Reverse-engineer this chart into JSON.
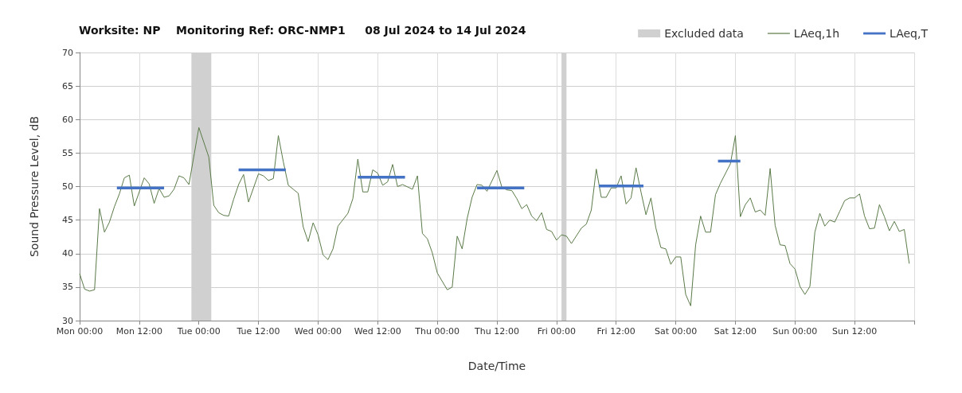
{
  "chart_data": {
    "type": "line",
    "title": "Worksite: NP    Monitoring Ref: ORC-NMP1     08 Jul 2024 to 14 Jul 2024",
    "xlabel": "Date/Time",
    "ylabel": "Sound Pressure Level, dB",
    "xlim": [
      "2024-07-08T00:00",
      "2024-07-15T00:00"
    ],
    "xticks": [
      {
        "value": "2024-07-08T00:00",
        "label": "Mon 00:00"
      },
      {
        "value": "2024-07-08T12:00",
        "label": "Mon 12:00"
      },
      {
        "value": "2024-07-09T00:00",
        "label": "Tue 00:00"
      },
      {
        "value": "2024-07-09T12:00",
        "label": "Tue 12:00"
      },
      {
        "value": "2024-07-10T00:00",
        "label": "Wed 00:00"
      },
      {
        "value": "2024-07-10T12:00",
        "label": "Wed 12:00"
      },
      {
        "value": "2024-07-11T00:00",
        "label": "Thu 00:00"
      },
      {
        "value": "2024-07-11T12:00",
        "label": "Thu 12:00"
      },
      {
        "value": "2024-07-12T00:00",
        "label": "Fri 00:00"
      },
      {
        "value": "2024-07-12T12:00",
        "label": "Fri 12:00"
      },
      {
        "value": "2024-07-13T00:00",
        "label": "Sat 00:00"
      },
      {
        "value": "2024-07-13T12:00",
        "label": "Sat 12:00"
      },
      {
        "value": "2024-07-14T00:00",
        "label": "Sun 00:00"
      },
      {
        "value": "2024-07-14T12:00",
        "label": "Sun 12:00"
      },
      {
        "value": "2024-07-15T00:00",
        "label": null
      }
    ],
    "ylim": [
      30,
      70
    ],
    "yticks": [
      30,
      35,
      40,
      45,
      50,
      55,
      60,
      65,
      70
    ],
    "grid": true,
    "legend": "top right",
    "bands": [
      {
        "axis": "x",
        "from": "2024-07-08T22:30",
        "to": "2024-07-09T02:30",
        "label": "Excluded data",
        "color": "#d0d0d0"
      },
      {
        "axis": "x",
        "from": "2024-07-12T01:00",
        "to": "2024-07-12T02:00",
        "color": "#d0d0d0"
      }
    ],
    "series": [
      {
        "name": "LAeq,1h",
        "color": "#5a7a48",
        "x": [
          "2024-07-08T00:00",
          "2024-07-08T01:00",
          "2024-07-08T02:00",
          "2024-07-08T03:00",
          "2024-07-08T04:00",
          "2024-07-08T05:00",
          "2024-07-08T06:00",
          "2024-07-08T07:00",
          "2024-07-08T08:00",
          "2024-07-08T09:00",
          "2024-07-08T10:00",
          "2024-07-08T11:00",
          "2024-07-08T13:00",
          "2024-07-08T14:00",
          "2024-07-08T15:00",
          "2024-07-08T16:00",
          "2024-07-08T17:00",
          "2024-07-08T18:00",
          "2024-07-08T19:00",
          "2024-07-08T20:00",
          "2024-07-08T21:00",
          "2024-07-08T22:00",
          "2024-07-09T00:00",
          "2024-07-09T02:00",
          "2024-07-09T03:00",
          "2024-07-09T04:00",
          "2024-07-09T05:00",
          "2024-07-09T06:00",
          "2024-07-09T07:00",
          "2024-07-09T08:00",
          "2024-07-09T09:00",
          "2024-07-09T10:00",
          "2024-07-09T12:00",
          "2024-07-09T13:00",
          "2024-07-09T14:00",
          "2024-07-09T15:00",
          "2024-07-09T16:00",
          "2024-07-09T17:00",
          "2024-07-09T18:00",
          "2024-07-09T19:00",
          "2024-07-09T20:00",
          "2024-07-09T21:00",
          "2024-07-09T22:00",
          "2024-07-09T23:00",
          "2024-07-10T00:00",
          "2024-07-10T01:00",
          "2024-07-10T02:00",
          "2024-07-10T03:00",
          "2024-07-10T04:00",
          "2024-07-10T06:00",
          "2024-07-10T07:00",
          "2024-07-10T08:00",
          "2024-07-10T09:00",
          "2024-07-10T10:00",
          "2024-07-10T11:00",
          "2024-07-10T12:00",
          "2024-07-10T13:00",
          "2024-07-10T14:00",
          "2024-07-10T15:00",
          "2024-07-10T16:00",
          "2024-07-10T17:00",
          "2024-07-10T19:00",
          "2024-07-10T20:00",
          "2024-07-10T21:00",
          "2024-07-10T22:00",
          "2024-07-10T23:00",
          "2024-07-11T00:00",
          "2024-07-11T02:00",
          "2024-07-11T03:00",
          "2024-07-11T04:00",
          "2024-07-11T05:00",
          "2024-07-11T06:00",
          "2024-07-11T07:00",
          "2024-07-11T08:00",
          "2024-07-11T09:00",
          "2024-07-11T10:00",
          "2024-07-11T12:00",
          "2024-07-11T13:00",
          "2024-07-11T14:00",
          "2024-07-11T15:00",
          "2024-07-11T16:00",
          "2024-07-11T17:00",
          "2024-07-11T18:00",
          "2024-07-11T19:00",
          "2024-07-11T20:00",
          "2024-07-11T21:00",
          "2024-07-11T22:00",
          "2024-07-11T23:00",
          "2024-07-12T00:00",
          "2024-07-12T01:00",
          "2024-07-12T02:00",
          "2024-07-12T03:00",
          "2024-07-12T05:00",
          "2024-07-12T06:00",
          "2024-07-12T07:00",
          "2024-07-12T08:00",
          "2024-07-12T09:00",
          "2024-07-12T10:00",
          "2024-07-12T11:00",
          "2024-07-12T12:00",
          "2024-07-12T13:00",
          "2024-07-12T14:00",
          "2024-07-12T15:00",
          "2024-07-12T16:00",
          "2024-07-12T17:00",
          "2024-07-12T18:00",
          "2024-07-12T19:00",
          "2024-07-12T20:00",
          "2024-07-12T21:00",
          "2024-07-12T22:00",
          "2024-07-12T23:00",
          "2024-07-13T00:00",
          "2024-07-13T01:00",
          "2024-07-13T02:00",
          "2024-07-13T03:00",
          "2024-07-13T04:00",
          "2024-07-13T05:00",
          "2024-07-13T06:00",
          "2024-07-13T07:00",
          "2024-07-13T08:00",
          "2024-07-13T09:00",
          "2024-07-13T11:00",
          "2024-07-13T12:00",
          "2024-07-13T13:00",
          "2024-07-13T14:00",
          "2024-07-13T15:00",
          "2024-07-13T16:00",
          "2024-07-13T17:00",
          "2024-07-13T18:00",
          "2024-07-13T19:00",
          "2024-07-13T20:00",
          "2024-07-13T21:00",
          "2024-07-13T22:00",
          "2024-07-13T23:00",
          "2024-07-14T00:00",
          "2024-07-14T01:00",
          "2024-07-14T02:00",
          "2024-07-14T03:00",
          "2024-07-14T04:00",
          "2024-07-14T05:00",
          "2024-07-14T06:00",
          "2024-07-14T07:00",
          "2024-07-14T08:00",
          "2024-07-14T09:00",
          "2024-07-14T10:00",
          "2024-07-14T11:00",
          "2024-07-14T12:00",
          "2024-07-14T13:00",
          "2024-07-14T14:00",
          "2024-07-14T15:00",
          "2024-07-14T16:00",
          "2024-07-14T17:00",
          "2024-07-14T18:00",
          "2024-07-14T19:00",
          "2024-07-14T20:00",
          "2024-07-14T21:00",
          "2024-07-14T22:00",
          "2024-07-14T23:00"
        ],
        "values": [
          37.0,
          34.7,
          34.4,
          34.6,
          46.7,
          43.2,
          44.7,
          47.0,
          48.9,
          51.3,
          51.7,
          47.1,
          51.3,
          50.4,
          47.5,
          49.7,
          48.4,
          48.6,
          49.6,
          51.6,
          51.3,
          50.3,
          58.8,
          54.4,
          47.2,
          46.1,
          45.7,
          45.6,
          48.1,
          50.3,
          51.8,
          47.7,
          51.9,
          51.6,
          50.9,
          51.2,
          57.6,
          53.7,
          50.2,
          49.6,
          49.0,
          44.0,
          41.8,
          44.6,
          42.8,
          39.8,
          39.1,
          40.7,
          44.1,
          46.0,
          48.2,
          54.1,
          49.2,
          49.2,
          52.5,
          52.0,
          50.2,
          50.7,
          53.3,
          50.0,
          50.3,
          49.6,
          51.6,
          43.0,
          42.2,
          40.1,
          37.1,
          34.6,
          35.0,
          42.6,
          40.7,
          45.2,
          48.4,
          50.3,
          50.2,
          49.3,
          52.4,
          49.9,
          49.5,
          49.4,
          48.2,
          46.7,
          47.3,
          45.6,
          44.9,
          46.1,
          43.6,
          43.3,
          42.0,
          42.8,
          42.6,
          41.5,
          43.8,
          44.4,
          46.5,
          52.6,
          48.4,
          48.4,
          49.8,
          49.8,
          51.6,
          47.4,
          48.3,
          52.8,
          49.2,
          45.8,
          48.3,
          43.8,
          40.9,
          40.7,
          38.4,
          39.5,
          39.5,
          33.9,
          32.2,
          41.3,
          45.6,
          43.2,
          43.2,
          48.8,
          50.5,
          53.4,
          57.6,
          45.5,
          47.3,
          48.3,
          46.2,
          46.5,
          45.7,
          52.7,
          44.2,
          41.3,
          41.2,
          38.5,
          37.7,
          35.1,
          33.9,
          35.1,
          43.2,
          46.0,
          44.1,
          45.0,
          44.7,
          46.3,
          47.9,
          48.3,
          48.3,
          48.9,
          45.6,
          43.7,
          43.8,
          47.3,
          45.5,
          43.4,
          44.8,
          43.3,
          43.6,
          38.5
        ]
      },
      {
        "name": "LAeq,T",
        "color": "#4472c4",
        "x": [
          "2024-07-08T07:30",
          "2024-07-08T17:00",
          "2024-07-09T00:00",
          "2024-07-09T08:00",
          "2024-07-09T17:30",
          "2024-07-10T00:00",
          "2024-07-10T08:00",
          "2024-07-10T17:30",
          "2024-07-11T00:00",
          "2024-07-11T08:00",
          "2024-07-11T17:30",
          "2024-07-12T00:00",
          "2024-07-12T08:30",
          "2024-07-12T17:30",
          "2024-07-13T00:00",
          "2024-07-13T08:30",
          "2024-07-13T13:00"
        ],
        "values": [
          49.8,
          49.8,
          null,
          52.5,
          52.5,
          null,
          51.4,
          51.4,
          null,
          49.8,
          49.8,
          null,
          50.1,
          50.1,
          null,
          53.8,
          53.8
        ]
      }
    ]
  }
}
